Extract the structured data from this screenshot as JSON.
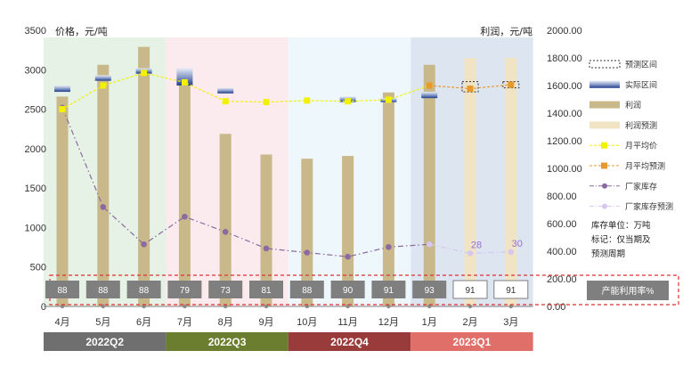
{
  "chart_data": {
    "type": "combo",
    "left_axis": {
      "unit": "价格，元/吨",
      "ylim": [
        0,
        3500
      ],
      "ticks": [
        0,
        500,
        1000,
        1500,
        2000,
        2500,
        3000,
        3500
      ]
    },
    "right_axis": {
      "unit": "利润，元/吨",
      "ylim": [
        0,
        2000
      ],
      "ticks": [
        "0.00",
        "200.00",
        "400.00",
        "600.00",
        "800.00",
        "1000.00",
        "1200.00",
        "1400.00",
        "1600.00",
        "1800.00",
        "2000.00"
      ]
    },
    "categories": [
      "4月",
      "5月",
      "6月",
      "7月",
      "8月",
      "9月",
      "10月",
      "11月",
      "12月",
      "1月",
      "2月",
      "3月"
    ],
    "quarters": [
      {
        "label": "2022Q2",
        "from": 0,
        "to": 2,
        "bar_color": "#6f6f6f",
        "band_color": "#e6f2e6"
      },
      {
        "label": "2022Q3",
        "from": 3,
        "to": 5,
        "bar_color": "#6b7d2e",
        "band_color": "#fcebee"
      },
      {
        "label": "2022Q4",
        "from": 6,
        "to": 8,
        "bar_color": "#9a3b3b",
        "band_color": "#eef7fb"
      },
      {
        "label": "2023Q1",
        "from": 9,
        "to": 11,
        "bar_color": "#e06f6a",
        "band_color": "#dde5f1"
      }
    ],
    "series": [
      {
        "name": "利润",
        "kind": "bar",
        "axis": "right",
        "color": "#c9b98a",
        "values": [
          1520,
          1750,
          1880,
          1620,
          1250,
          1100,
          1070,
          1090,
          1550,
          1750,
          null,
          null
        ]
      },
      {
        "name": "利润预测",
        "kind": "bar",
        "axis": "right",
        "color": "#f0e4c4",
        "values": [
          null,
          null,
          null,
          null,
          null,
          null,
          null,
          null,
          null,
          null,
          1800,
          1800
        ]
      },
      {
        "name": "实际区间",
        "kind": "range",
        "axis": "left",
        "values": [
          [
            2720,
            2800
          ],
          [
            2860,
            2930
          ],
          [
            2950,
            3020
          ],
          [
            2800,
            3020
          ],
          [
            2700,
            2770
          ],
          [
            null,
            null
          ],
          [
            null,
            null
          ],
          [
            2590,
            2660
          ],
          [
            2590,
            2640
          ],
          [
            2640,
            2720
          ],
          [
            null,
            null
          ],
          [
            null,
            null
          ]
        ]
      },
      {
        "name": "预测区间",
        "kind": "range",
        "axis": "left",
        "values": [
          [
            null,
            null
          ],
          [
            null,
            null
          ],
          [
            null,
            null
          ],
          [
            null,
            null
          ],
          [
            null,
            null
          ],
          [
            null,
            null
          ],
          [
            null,
            null
          ],
          [
            null,
            null
          ],
          [
            null,
            null
          ],
          [
            null,
            null
          ],
          [
            2720,
            2850
          ],
          [
            2770,
            2850
          ]
        ]
      },
      {
        "name": "月平均价",
        "kind": "line",
        "axis": "left",
        "color": "#f2f200",
        "values": [
          2500,
          2800,
          2960,
          2840,
          2600,
          2590,
          2610,
          2600,
          2620,
          2800,
          null,
          null
        ]
      },
      {
        "name": "月平均预测",
        "kind": "line",
        "axis": "left",
        "color": "#e69a2e",
        "values": [
          null,
          null,
          null,
          null,
          null,
          null,
          null,
          null,
          null,
          2800,
          2760,
          2810
        ]
      },
      {
        "name": "厂家库存",
        "kind": "line",
        "axis": "right",
        "color": "#8a6aa0",
        "values": [
          1440,
          720,
          450,
          650,
          540,
          420,
          390,
          360,
          430,
          450,
          null,
          null
        ]
      },
      {
        "name": "厂家库存预测",
        "kind": "line",
        "axis": "right",
        "color": "#d6c8ec",
        "values": [
          null,
          null,
          null,
          null,
          null,
          null,
          null,
          null,
          null,
          450,
          385,
          395
        ],
        "labels": [
          null,
          null,
          null,
          null,
          null,
          null,
          null,
          null,
          null,
          null,
          "28",
          "30"
        ]
      }
    ],
    "utilization": {
      "title": "产能利用率%",
      "values": [
        "88",
        "88",
        "88",
        "79",
        "73",
        "81",
        "88",
        "90",
        "91",
        "93",
        "91",
        "91"
      ],
      "forecast_from": 10
    },
    "legend": {
      "position": "right"
    },
    "notes": [
      "库存单位：万吨",
      "标记：仅当期及",
      "预测周期"
    ]
  }
}
